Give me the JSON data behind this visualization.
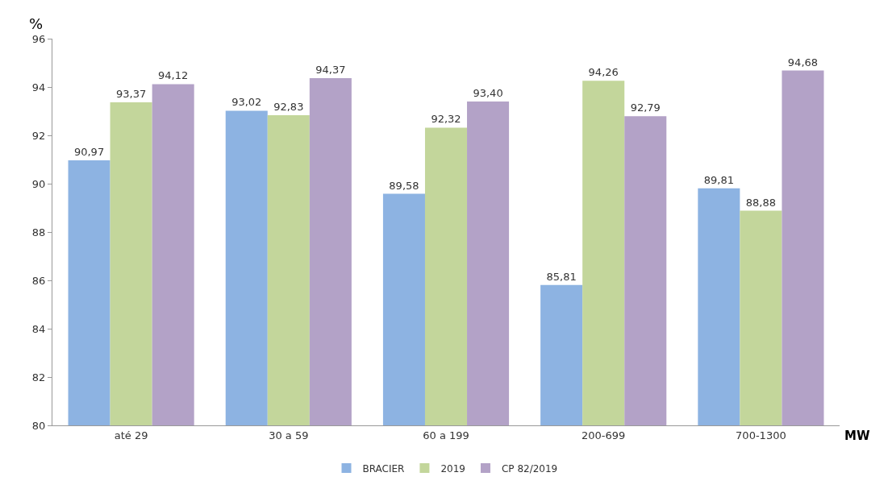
{
  "chart_data": {
    "type": "bar",
    "ylabel": "%",
    "xlabel": "MW",
    "categories": [
      "até 29",
      "30 a 59",
      "60 a 199",
      "200-699",
      "700-1300"
    ],
    "series": [
      {
        "name": "BRACIER",
        "color": "#8db3e2",
        "values": [
          90.97,
          93.02,
          89.58,
          85.81,
          89.81
        ],
        "value_labels": [
          "90,97",
          "93,02",
          "89,58",
          "85,81",
          "89,81"
        ]
      },
      {
        "name": "2019",
        "color": "#c3d69b",
        "values": [
          93.37,
          92.83,
          92.32,
          94.26,
          88.88
        ],
        "value_labels": [
          "93,37",
          "92,83",
          "92,32",
          "94,26",
          "88,88"
        ]
      },
      {
        "name": "CP 82/2019",
        "color": "#b3a2c7",
        "values": [
          94.12,
          94.37,
          93.4,
          92.79,
          94.68
        ],
        "value_labels": [
          "94,12",
          "94,37",
          "93,40",
          "92,79",
          "94,68"
        ]
      }
    ],
    "ylim": [
      80,
      96
    ],
    "yticks": [
      80,
      82,
      84,
      86,
      88,
      90,
      92,
      94,
      96
    ],
    "grid": false,
    "legend": "bottom"
  }
}
